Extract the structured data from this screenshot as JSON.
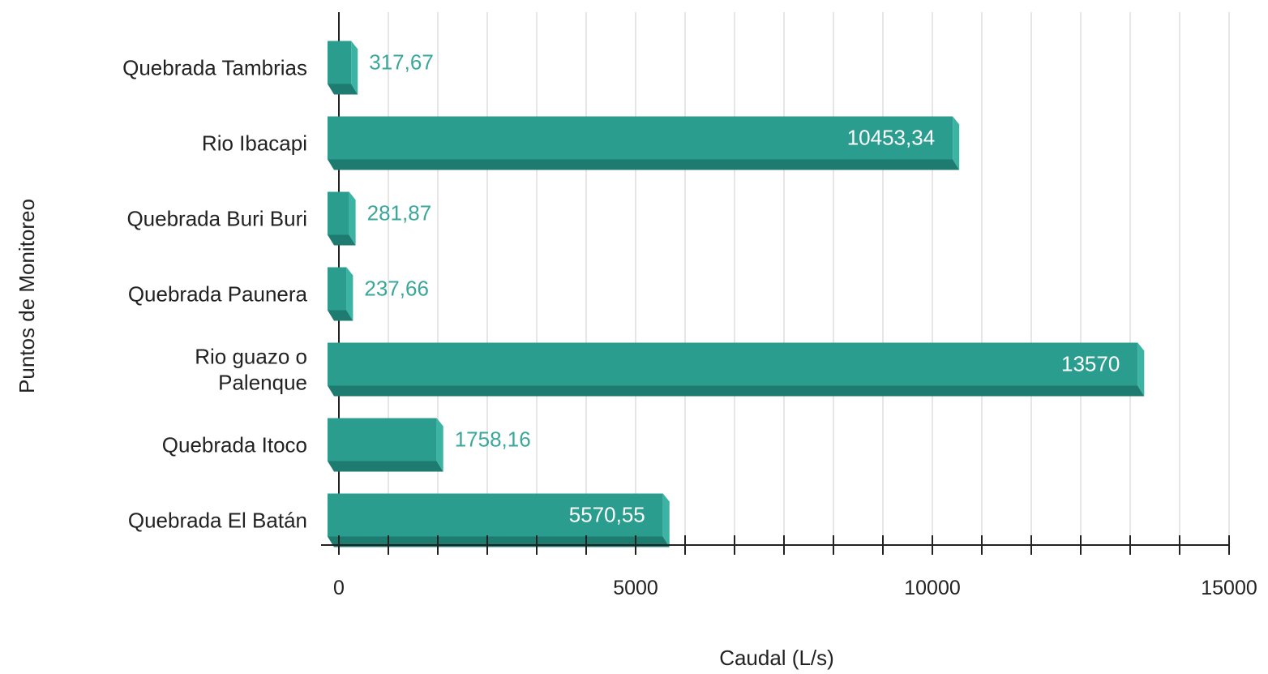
{
  "chart_data": {
    "type": "bar",
    "orientation": "horizontal",
    "categories": [
      "Quebrada Tambrias",
      "Rio Ibacapi",
      "Quebrada Buri Buri",
      "Quebrada Paunera",
      "Rio guazo o Palenque",
      "Quebrada Itoco",
      "Quebrada El Batán"
    ],
    "category_lines": [
      [
        "Quebrada Tambrias"
      ],
      [
        "Rio Ibacapi"
      ],
      [
        "Quebrada Buri Buri"
      ],
      [
        "Quebrada Paunera"
      ],
      [
        "Rio guazo o",
        "Palenque"
      ],
      [
        "Quebrada Itoco"
      ],
      [
        "Quebrada El Batán"
      ]
    ],
    "values": [
      317.67,
      10453.34,
      281.87,
      237.66,
      13570,
      1758.16,
      5570.55
    ],
    "data_labels": [
      "317,67",
      "10453,34",
      "281,87",
      "237,66",
      "13570",
      "1758,16",
      "5570,55"
    ],
    "xlabel": "Caudal (L/s)",
    "ylabel": "Puntos de Monitoreo",
    "xlim": [
      0,
      15000
    ],
    "x_ticks": [
      0,
      5000,
      10000,
      15000
    ],
    "x_tick_labels": [
      "0",
      "5000",
      "10000",
      "15000"
    ],
    "minor_tick_step": 833.33,
    "grid": "vertical",
    "bar_color": "#2a9d8f",
    "bar_dark_color": "#1d7b6f",
    "label_outside_color": "#3aa79a",
    "label_inside_color": "#ffffff"
  }
}
